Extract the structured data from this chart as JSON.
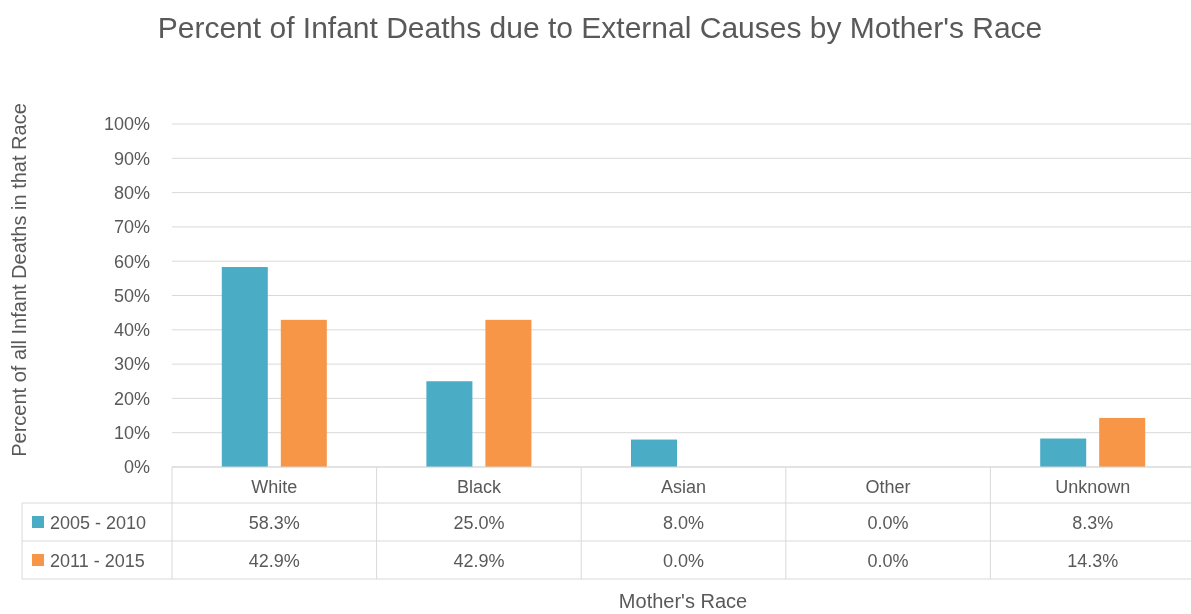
{
  "chart_data": {
    "type": "bar",
    "title": "Percent of Infant Deaths due to External Causes by Mother's Race",
    "xlabel": "Mother's Race",
    "ylabel": "Percent of all Infant Deaths in that Race",
    "categories": [
      "White",
      "Black",
      "Asian",
      "Other",
      "Unknown"
    ],
    "series": [
      {
        "name": "2005 - 2010",
        "color": "#4bacc6",
        "values": [
          58.3,
          25.0,
          8.0,
          0.0,
          8.3
        ],
        "value_labels": [
          "58.3%",
          "25.0%",
          "8.0%",
          "0.0%",
          "8.3%"
        ]
      },
      {
        "name": "2011 - 2015",
        "color": "#f79646",
        "values": [
          42.9,
          42.9,
          0.0,
          0.0,
          14.3
        ],
        "value_labels": [
          "42.9%",
          "42.9%",
          "0.0%",
          "0.0%",
          "14.3%"
        ]
      }
    ],
    "ylim": [
      0,
      100
    ],
    "yticks": [
      {
        "value": 0,
        "label": "0%"
      },
      {
        "value": 10,
        "label": "10%"
      },
      {
        "value": 20,
        "label": "20%"
      },
      {
        "value": 30,
        "label": "30%"
      },
      {
        "value": 40,
        "label": "40%"
      },
      {
        "value": 50,
        "label": "50%"
      },
      {
        "value": 60,
        "label": "60%"
      },
      {
        "value": 70,
        "label": "70%"
      },
      {
        "value": 80,
        "label": "80%"
      },
      {
        "value": 90,
        "label": "90%"
      },
      {
        "value": 100,
        "label": "100%"
      }
    ],
    "grid": "y",
    "legend": "bottom",
    "data_labels": true
  }
}
